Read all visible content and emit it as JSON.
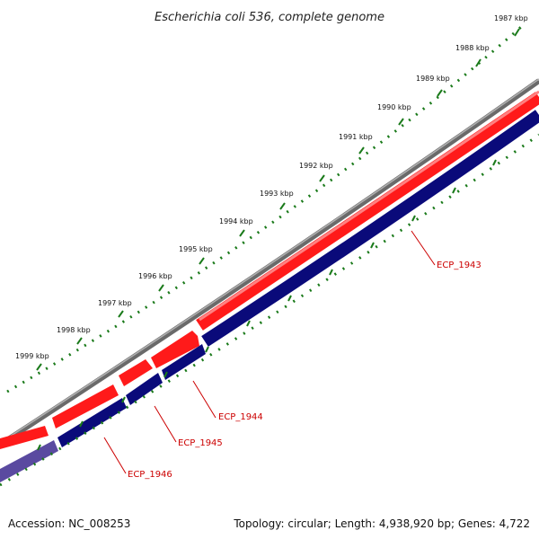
{
  "title": "Escherichia coli 536, complete genome",
  "kbp_labels": [
    "1987 kbp",
    "1988 kbp",
    "1989 kbp",
    "1990 kbp",
    "1991 kbp",
    "1992 kbp",
    "1993 kbp",
    "1994 kbp",
    "1995 kbp",
    "1996 kbp",
    "1997 kbp",
    "1998 kbp",
    "1999 kbp"
  ],
  "genes": [
    {
      "label": "ECP_1943",
      "strand": "reverse"
    },
    {
      "label": "ECP_1944",
      "strand": "reverse"
    },
    {
      "label": "ECP_1945",
      "strand": "reverse"
    },
    {
      "label": "ECP_1946",
      "strand": "reverse"
    }
  ],
  "colors": {
    "backbone": "#7f7f7f",
    "forward_cds": "#ff1a1a",
    "reverse_cds": "#0a0a7a",
    "reverse_cds_light": "#5a4aa0",
    "ticks": "#1a7a1a",
    "label": "#cc0000"
  },
  "footer": {
    "accession": "Accession: NC_008253",
    "stats": "Topology: circular; Length: 4,938,920 bp; Genes: 4,722"
  }
}
